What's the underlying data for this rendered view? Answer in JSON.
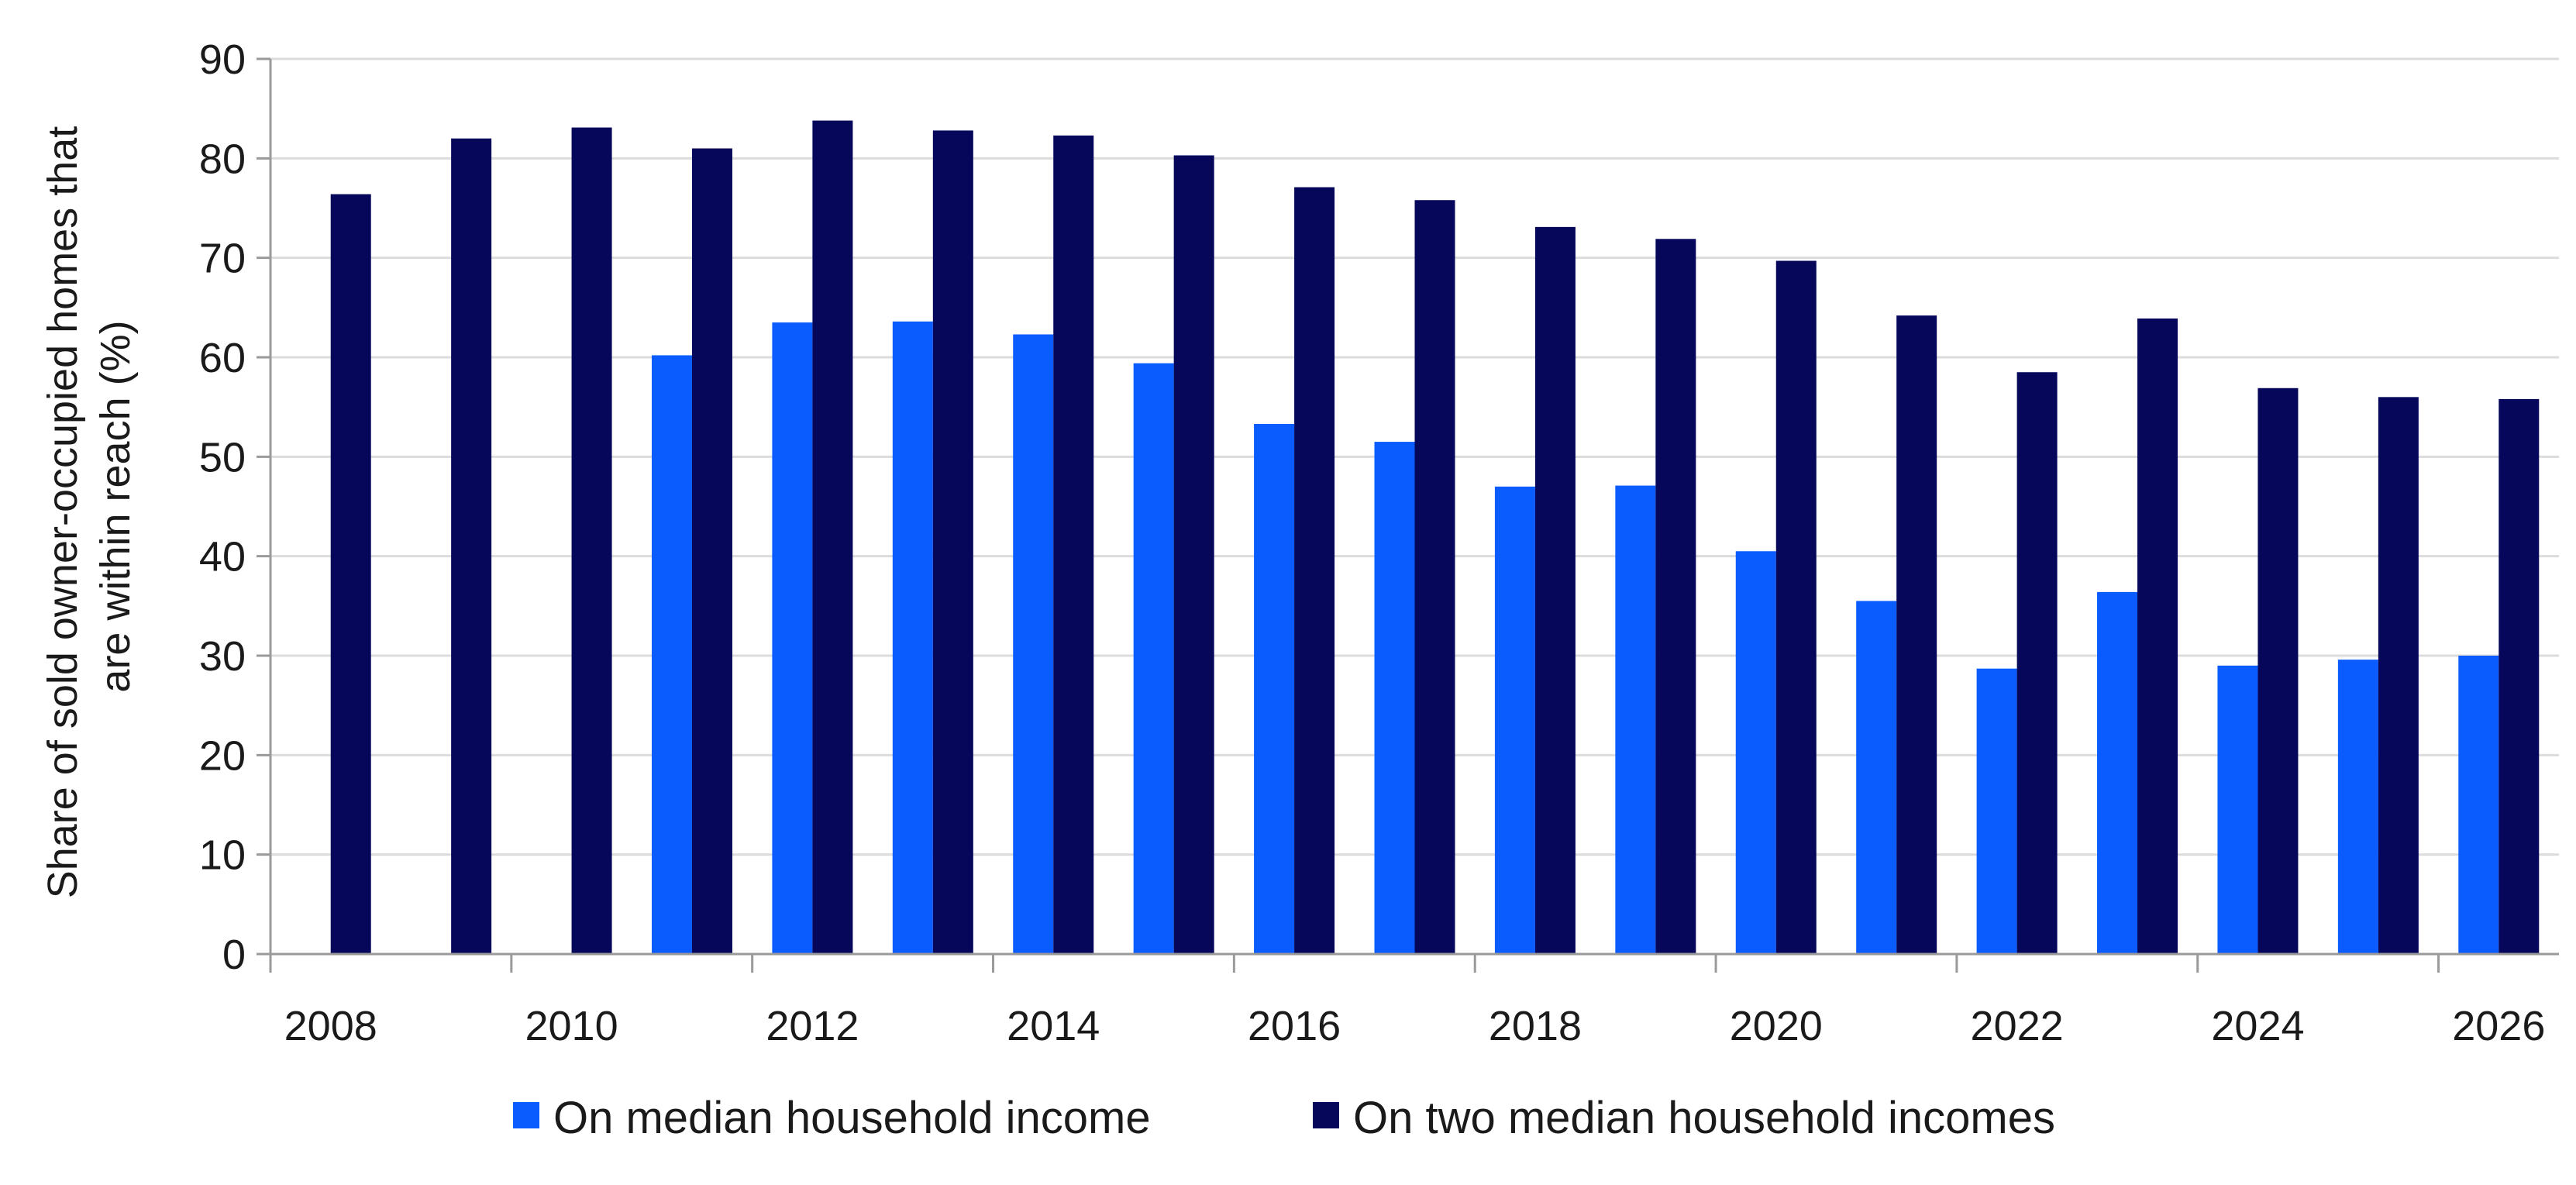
{
  "chart_data": {
    "type": "bar",
    "title": "",
    "xlabel": "",
    "ylabel_lines": [
      "Share of sold owner-occupied homes that",
      "are within reach (%)"
    ],
    "ylim": [
      0,
      90
    ],
    "yticks": [
      0,
      10,
      20,
      30,
      40,
      50,
      60,
      70,
      80,
      90
    ],
    "grid": true,
    "legend_position": "bottom",
    "categories": [
      "2008",
      "2009",
      "2010",
      "2011",
      "2012",
      "2013",
      "2014",
      "2015",
      "2016",
      "2017",
      "2018",
      "2019",
      "2020",
      "2021",
      "2022",
      "2023",
      "2024",
      "2025",
      "2026"
    ],
    "x_tick_labels": [
      "2008",
      "",
      "2010",
      "",
      "2012",
      "",
      "2014",
      "",
      "2016",
      "",
      "2018",
      "",
      "2020",
      "",
      "2022",
      "",
      "2024",
      "",
      "2026"
    ],
    "series": [
      {
        "name": "On median household income",
        "color": "#0a5cff",
        "values": [
          null,
          null,
          null,
          60.2,
          63.5,
          63.6,
          62.3,
          59.4,
          53.3,
          51.5,
          47.0,
          47.1,
          40.5,
          35.5,
          28.7,
          36.4,
          29.0,
          29.6,
          30.0
        ]
      },
      {
        "name": "On two median household incomes",
        "color": "#06065a",
        "values": [
          76.4,
          82.0,
          83.1,
          81.0,
          83.8,
          82.8,
          82.3,
          80.3,
          77.1,
          75.8,
          73.1,
          71.9,
          69.7,
          64.2,
          58.5,
          63.9,
          56.9,
          56.0,
          55.8
        ]
      }
    ]
  }
}
